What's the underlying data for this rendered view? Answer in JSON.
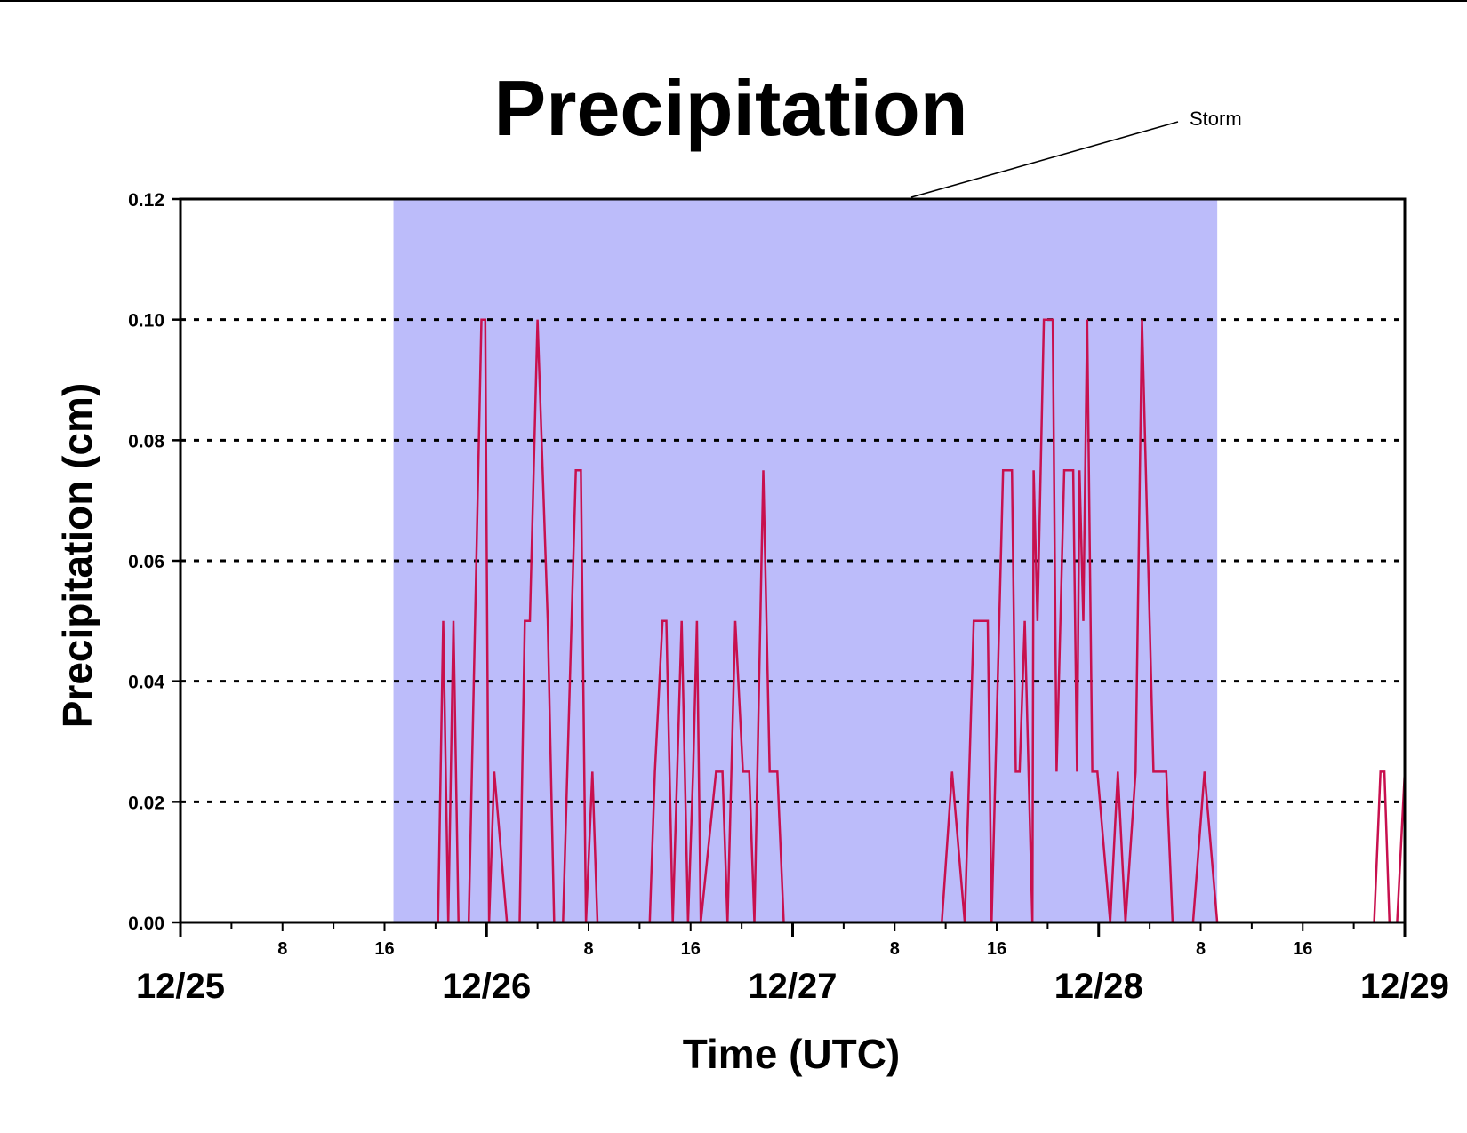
{
  "chart_data": {
    "type": "line",
    "title": "Precipitation",
    "xlabel": "Time (UTC)",
    "ylabel": "Precipitation (cm)",
    "xlim": [
      "12/25 00:00",
      "12/29 00:00"
    ],
    "ylim": [
      0,
      0.12
    ],
    "x_unit": "hours since 12/25 00:00 UTC",
    "y_ticks": [
      "0.00",
      "0.02",
      "0.04",
      "0.06",
      "0.08",
      "0.10",
      "0.12"
    ],
    "x_major_ticks": [
      {
        "label": "12/25",
        "hour": 0
      },
      {
        "label": "12/26",
        "hour": 24
      },
      {
        "label": "12/27",
        "hour": 48
      },
      {
        "label": "12/28",
        "hour": 72
      },
      {
        "label": "12/29",
        "hour": 96
      }
    ],
    "x_minor_ticks": [
      {
        "label": "8",
        "hour": 8
      },
      {
        "label": "16",
        "hour": 16
      },
      {
        "label": "8",
        "hour": 32
      },
      {
        "label": "16",
        "hour": 40
      },
      {
        "label": "8",
        "hour": 56
      },
      {
        "label": "16",
        "hour": 64
      },
      {
        "label": "8",
        "hour": 80
      },
      {
        "label": "16",
        "hour": 88
      }
    ],
    "grid": "horizontal dotted",
    "line_color": "#c8104e",
    "storm_color": "#bcbcfa",
    "annotation": {
      "text": "Storm",
      "storm_start_hour": 16.7,
      "storm_end_hour": 81.3
    },
    "series": [
      {
        "x": [
          0,
          20.2,
          20.6,
          21.0,
          21.4,
          21.8,
          22.6,
          23.6,
          23.9,
          24.2,
          24.6,
          25.6,
          26.6,
          27.0,
          27.4,
          28.0,
          28.8,
          29.3,
          30.0,
          31.0,
          31.4,
          31.8,
          32.3,
          32.7,
          36.8,
          37.2,
          37.8,
          38.1,
          38.6,
          39.3,
          39.8,
          40.2,
          40.5,
          40.8,
          42.0,
          42.5,
          42.9,
          43.5,
          44.1,
          44.6,
          45.0,
          45.7,
          46.2,
          46.6,
          46.8,
          47.3,
          47.8,
          59.0,
          59.7,
          60.5,
          61.5,
          62.2,
          62.8,
          63.3,
          63.6,
          64.5,
          65.2,
          65.5,
          65.8,
          66.2,
          66.8,
          66.9,
          67.2,
          67.7,
          68.0,
          68.4,
          68.7,
          69.3,
          70.0,
          70.3,
          70.5,
          70.8,
          71.1,
          71.5,
          71.9,
          72.9,
          73.5,
          74.1,
          74.9,
          75.4,
          76.3,
          77.3,
          77.8,
          79.4,
          80.3,
          81.3,
          93.6,
          94.1,
          94.4,
          94.8,
          95.4,
          96.0
        ],
        "y": [
          0,
          0,
          0.05,
          0,
          0.05,
          0,
          0,
          0.1,
          0.1,
          0,
          0.025,
          0,
          0,
          0.05,
          0.05,
          0.1,
          0.05,
          0,
          0,
          0.075,
          0.075,
          0,
          0.025,
          0,
          0,
          0.025,
          0.05,
          0.05,
          0,
          0.05,
          0,
          0.025,
          0.05,
          0,
          0.025,
          0.025,
          0,
          0.05,
          0.025,
          0.025,
          0,
          0.075,
          0.025,
          0.025,
          0.025,
          0,
          0,
          0,
          0,
          0.025,
          0,
          0.05,
          0.05,
          0.05,
          0,
          0.075,
          0.075,
          0.025,
          0.025,
          0.05,
          0,
          0.075,
          0.05,
          0.1,
          0.1,
          0.1,
          0.025,
          0.075,
          0.075,
          0.025,
          0.075,
          0.05,
          0.1,
          0.025,
          0.025,
          0,
          0.025,
          0,
          0.025,
          0.1,
          0.025,
          0.025,
          0,
          0,
          0.025,
          0,
          0,
          0.025,
          0.025,
          0,
          0,
          0.025
        ]
      }
    ]
  }
}
